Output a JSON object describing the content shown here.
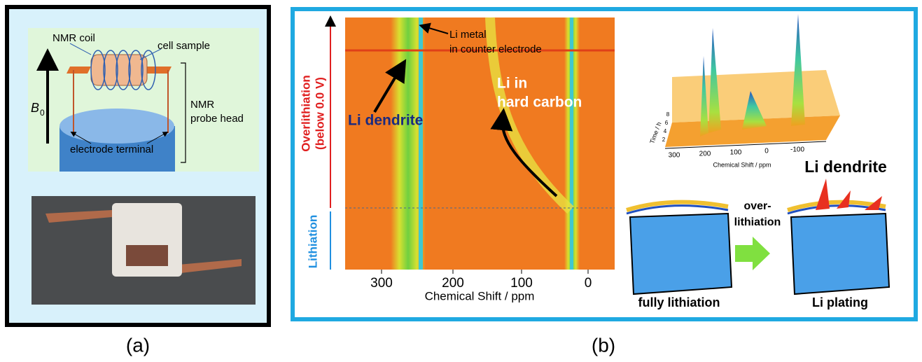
{
  "panel_a": {
    "labels": {
      "nmr_coil": "NMR coil",
      "cell_sample": "cell sample",
      "field_symbol": "B",
      "field_subscript": "0",
      "probe_head": [
        "NMR",
        "probe head"
      ],
      "electrode_terminal": "electrode terminal"
    },
    "caption": "(a)"
  },
  "panel_b": {
    "spectrum": {
      "x_axis_label": "Chemical Shift / ppm",
      "x_ticks": [
        "300",
        "200",
        "100",
        "0"
      ],
      "y_labels": {
        "overlithiation": [
          "Overlithiation",
          "(below 0.0 V)"
        ],
        "lithiation": "Lithiation"
      },
      "annotations": {
        "li_metal": [
          "Li metal",
          "in counter electrode"
        ],
        "li_hard_carbon": [
          "Li in",
          "hard carbon"
        ],
        "li_dendrite": "Li dendrite"
      }
    },
    "inset_3d": {
      "x_axis_label": "Chemical Shift / ppm",
      "x_ticks": [
        "300",
        "200",
        "100",
        "0",
        "-100"
      ],
      "y_axis_label": "Time / h",
      "y_ticks": [
        "2",
        "4",
        "6",
        "8"
      ]
    },
    "schematic": {
      "li_dendrite": "Li dendrite",
      "over_lithiation": [
        "over-",
        "lithiation"
      ],
      "fully_lithiation": "fully lithiation",
      "li_plating": "Li plating"
    },
    "caption": "(b)"
  }
}
